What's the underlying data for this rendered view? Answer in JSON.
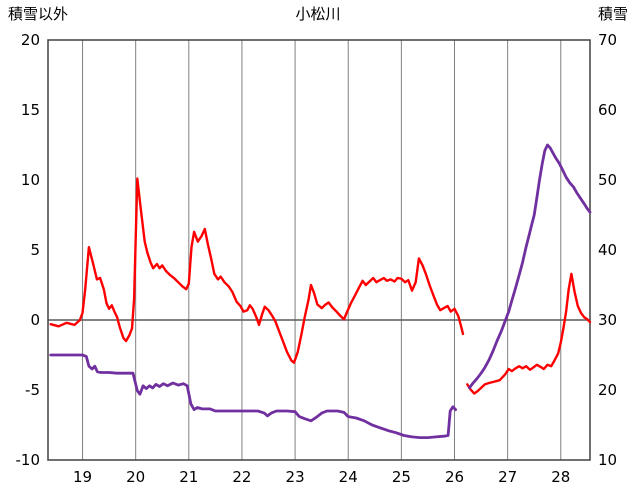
{
  "header": {
    "left_axis_title": "積雪以外",
    "chart_title": "小松川",
    "right_axis_title": "積雪"
  },
  "chart_data": {
    "type": "line",
    "title": "小松川",
    "legend": "none",
    "grid": "vertical-only",
    "x_axis": {
      "min": 18.35,
      "max": 28.55,
      "ticks": [
        19,
        20,
        21,
        22,
        23,
        24,
        25,
        26,
        27,
        28
      ]
    },
    "left_axis": {
      "label": "積雪以外",
      "min": -10,
      "max": 20,
      "ticks": [
        20,
        15,
        10,
        5,
        0,
        -5,
        -10
      ]
    },
    "right_axis": {
      "label": "積雪",
      "min": 10,
      "max": 70,
      "ticks": [
        70,
        60,
        50,
        40,
        30,
        20,
        10
      ]
    },
    "style": {
      "background": "#ffffff",
      "grid_color": "#808080",
      "zero_line_color": "#595959",
      "border_color": "#404040",
      "text_color": "#000000",
      "red_series_color": "#ff0000",
      "purple_series_color": "#7030a0"
    },
    "series": [
      {
        "id": "red-left-axis",
        "color": "#ff0000",
        "axis": "left",
        "width": 2.4,
        "segments": [
          [
            [
              18.4,
              -0.3
            ],
            [
              18.55,
              -0.45
            ],
            [
              18.7,
              -0.2
            ],
            [
              18.85,
              -0.35
            ],
            [
              18.95,
              0.0
            ],
            [
              19.0,
              0.5
            ],
            [
              19.05,
              2.2
            ],
            [
              19.12,
              5.2
            ],
            [
              19.2,
              4.0
            ],
            [
              19.27,
              2.9
            ],
            [
              19.33,
              3.0
            ],
            [
              19.4,
              2.2
            ],
            [
              19.45,
              1.2
            ],
            [
              19.5,
              0.8
            ],
            [
              19.55,
              1.05
            ],
            [
              19.6,
              0.6
            ],
            [
              19.65,
              0.2
            ],
            [
              19.7,
              -0.5
            ],
            [
              19.77,
              -1.3
            ],
            [
              19.82,
              -1.5
            ],
            [
              19.88,
              -1.1
            ],
            [
              19.93,
              -0.6
            ],
            [
              19.97,
              1.5
            ],
            [
              20.03,
              10.1
            ],
            [
              20.1,
              7.8
            ],
            [
              20.17,
              5.6
            ],
            [
              20.22,
              4.8
            ],
            [
              20.28,
              4.1
            ],
            [
              20.33,
              3.7
            ],
            [
              20.4,
              4.0
            ],
            [
              20.45,
              3.7
            ],
            [
              20.5,
              3.9
            ],
            [
              20.57,
              3.5
            ],
            [
              20.65,
              3.2
            ],
            [
              20.72,
              3.0
            ],
            [
              20.8,
              2.7
            ],
            [
              20.88,
              2.4
            ],
            [
              20.95,
              2.2
            ],
            [
              21.0,
              2.6
            ],
            [
              21.05,
              5.2
            ],
            [
              21.1,
              6.3
            ],
            [
              21.17,
              5.6
            ],
            [
              21.24,
              6.0
            ],
            [
              21.3,
              6.5
            ],
            [
              21.36,
              5.4
            ],
            [
              21.42,
              4.4
            ],
            [
              21.48,
              3.3
            ],
            [
              21.55,
              2.9
            ],
            [
              21.6,
              3.1
            ],
            [
              21.67,
              2.7
            ],
            [
              21.75,
              2.4
            ],
            [
              21.82,
              2.0
            ],
            [
              21.9,
              1.3
            ],
            [
              21.97,
              1.0
            ],
            [
              22.03,
              0.6
            ],
            [
              22.1,
              0.7
            ],
            [
              22.15,
              1.05
            ],
            [
              22.2,
              0.8
            ],
            [
              22.27,
              0.2
            ],
            [
              22.32,
              -0.35
            ],
            [
              22.38,
              0.4
            ],
            [
              22.43,
              0.95
            ],
            [
              22.5,
              0.7
            ],
            [
              22.57,
              0.3
            ],
            [
              22.63,
              -0.1
            ],
            [
              22.7,
              -0.8
            ],
            [
              22.78,
              -1.6
            ],
            [
              22.85,
              -2.3
            ],
            [
              22.93,
              -2.9
            ],
            [
              22.98,
              -3.05
            ],
            [
              23.05,
              -2.3
            ],
            [
              23.12,
              -1.0
            ],
            [
              23.18,
              0.2
            ],
            [
              23.25,
              1.4
            ],
            [
              23.3,
              2.5
            ],
            [
              23.36,
              1.9
            ],
            [
              23.42,
              1.1
            ],
            [
              23.5,
              0.85
            ],
            [
              23.57,
              1.1
            ],
            [
              23.63,
              1.25
            ],
            [
              23.7,
              0.9
            ],
            [
              23.78,
              0.6
            ],
            [
              23.85,
              0.3
            ],
            [
              23.92,
              0.05
            ],
            [
              23.97,
              0.5
            ],
            [
              24.05,
              1.2
            ],
            [
              24.12,
              1.7
            ],
            [
              24.2,
              2.3
            ],
            [
              24.27,
              2.8
            ],
            [
              24.33,
              2.5
            ],
            [
              24.4,
              2.75
            ],
            [
              24.47,
              3.0
            ],
            [
              24.53,
              2.7
            ],
            [
              24.6,
              2.85
            ],
            [
              24.67,
              3.0
            ],
            [
              24.73,
              2.8
            ],
            [
              24.8,
              2.9
            ],
            [
              24.87,
              2.75
            ],
            [
              24.93,
              3.0
            ],
            [
              25.0,
              2.95
            ],
            [
              25.07,
              2.7
            ],
            [
              25.13,
              2.85
            ],
            [
              25.2,
              2.1
            ],
            [
              25.27,
              2.7
            ],
            [
              25.33,
              4.4
            ],
            [
              25.4,
              3.9
            ],
            [
              25.47,
              3.2
            ],
            [
              25.53,
              2.5
            ],
            [
              25.6,
              1.8
            ],
            [
              25.67,
              1.1
            ],
            [
              25.73,
              0.7
            ],
            [
              25.8,
              0.85
            ],
            [
              25.87,
              1.0
            ],
            [
              25.93,
              0.6
            ],
            [
              26.0,
              0.8
            ],
            [
              26.07,
              0.3
            ],
            [
              26.12,
              -0.4
            ],
            [
              26.16,
              -1.0
            ]
          ],
          [
            [
              26.24,
              -4.6
            ],
            [
              26.3,
              -4.95
            ],
            [
              26.37,
              -5.25
            ],
            [
              26.43,
              -5.1
            ],
            [
              26.5,
              -4.85
            ],
            [
              26.57,
              -4.6
            ],
            [
              26.65,
              -4.5
            ],
            [
              26.75,
              -4.4
            ],
            [
              26.85,
              -4.3
            ],
            [
              26.95,
              -3.9
            ],
            [
              27.02,
              -3.5
            ],
            [
              27.08,
              -3.65
            ],
            [
              27.15,
              -3.45
            ],
            [
              27.22,
              -3.3
            ],
            [
              27.28,
              -3.45
            ],
            [
              27.35,
              -3.3
            ],
            [
              27.42,
              -3.55
            ],
            [
              27.48,
              -3.4
            ],
            [
              27.55,
              -3.2
            ],
            [
              27.62,
              -3.35
            ],
            [
              27.68,
              -3.5
            ],
            [
              27.75,
              -3.2
            ],
            [
              27.82,
              -3.3
            ],
            [
              27.88,
              -2.9
            ],
            [
              27.95,
              -2.4
            ],
            [
              28.0,
              -1.6
            ],
            [
              28.05,
              -0.6
            ],
            [
              28.1,
              0.6
            ],
            [
              28.15,
              2.2
            ],
            [
              28.2,
              3.3
            ],
            [
              28.26,
              2.0
            ],
            [
              28.32,
              1.0
            ],
            [
              28.38,
              0.5
            ],
            [
              28.44,
              0.2
            ],
            [
              28.5,
              0.05
            ],
            [
              28.55,
              -0.15
            ]
          ]
        ]
      },
      {
        "id": "purple-right-axis",
        "color": "#7030a0",
        "axis": "right",
        "width": 2.8,
        "segments": [
          [
            [
              18.4,
              25
            ],
            [
              18.7,
              25
            ],
            [
              19.0,
              25
            ],
            [
              19.07,
              24.8
            ],
            [
              19.12,
              23.4
            ],
            [
              19.18,
              23.0
            ],
            [
              19.23,
              23.4
            ],
            [
              19.28,
              22.6
            ],
            [
              19.35,
              22.5
            ],
            [
              19.5,
              22.5
            ],
            [
              19.65,
              22.4
            ],
            [
              19.8,
              22.4
            ],
            [
              19.95,
              22.4
            ],
            [
              20.03,
              19.9
            ],
            [
              20.08,
              19.4
            ],
            [
              20.14,
              20.6
            ],
            [
              20.2,
              20.2
            ],
            [
              20.26,
              20.6
            ],
            [
              20.32,
              20.3
            ],
            [
              20.38,
              20.8
            ],
            [
              20.45,
              20.5
            ],
            [
              20.52,
              20.9
            ],
            [
              20.6,
              20.6
            ],
            [
              20.7,
              21.0
            ],
            [
              20.8,
              20.7
            ],
            [
              20.9,
              20.9
            ],
            [
              20.97,
              20.6
            ],
            [
              21.04,
              18.0
            ],
            [
              21.1,
              17.2
            ],
            [
              21.16,
              17.5
            ],
            [
              21.25,
              17.3
            ],
            [
              21.4,
              17.3
            ],
            [
              21.5,
              17.0
            ],
            [
              21.7,
              17.0
            ],
            [
              21.9,
              17.0
            ],
            [
              22.1,
              17.0
            ],
            [
              22.3,
              17.0
            ],
            [
              22.42,
              16.7
            ],
            [
              22.48,
              16.3
            ],
            [
              22.55,
              16.7
            ],
            [
              22.65,
              17.0
            ],
            [
              22.85,
              17.0
            ],
            [
              23.0,
              16.9
            ],
            [
              23.08,
              16.2
            ],
            [
              23.18,
              15.9
            ],
            [
              23.3,
              15.6
            ],
            [
              23.4,
              16.1
            ],
            [
              23.5,
              16.7
            ],
            [
              23.6,
              17.0
            ],
            [
              23.8,
              17.0
            ],
            [
              23.92,
              16.8
            ],
            [
              24.0,
              16.2
            ],
            [
              24.15,
              16.0
            ],
            [
              24.3,
              15.6
            ],
            [
              24.45,
              15.0
            ],
            [
              24.6,
              14.6
            ],
            [
              24.75,
              14.2
            ],
            [
              24.9,
              13.9
            ],
            [
              25.05,
              13.5
            ],
            [
              25.2,
              13.3
            ],
            [
              25.35,
              13.2
            ],
            [
              25.5,
              13.2
            ],
            [
              25.65,
              13.3
            ],
            [
              25.8,
              13.4
            ],
            [
              25.88,
              13.5
            ],
            [
              25.92,
              17.0
            ],
            [
              25.97,
              17.6
            ],
            [
              26.02,
              17.2
            ]
          ],
          [
            [
              26.28,
              20.3
            ],
            [
              26.35,
              21.0
            ],
            [
              26.42,
              21.6
            ],
            [
              26.5,
              22.4
            ],
            [
              26.57,
              23.2
            ],
            [
              26.65,
              24.3
            ],
            [
              26.72,
              25.5
            ],
            [
              26.8,
              27.0
            ],
            [
              26.88,
              28.4
            ],
            [
              26.95,
              29.8
            ],
            [
              27.02,
              31.2
            ],
            [
              27.08,
              32.8
            ],
            [
              27.15,
              34.6
            ],
            [
              27.22,
              36.5
            ],
            [
              27.28,
              38.2
            ],
            [
              27.35,
              40.5
            ],
            [
              27.4,
              42.0
            ],
            [
              27.45,
              43.5
            ],
            [
              27.5,
              45.0
            ],
            [
              27.55,
              47.5
            ],
            [
              27.6,
              50.0
            ],
            [
              27.65,
              52.3
            ],
            [
              27.7,
              54.2
            ],
            [
              27.75,
              55.0
            ],
            [
              27.8,
              54.6
            ],
            [
              27.85,
              53.9
            ],
            [
              27.9,
              53.2
            ],
            [
              27.97,
              52.4
            ],
            [
              28.03,
              51.5
            ],
            [
              28.1,
              50.4
            ],
            [
              28.17,
              49.6
            ],
            [
              28.24,
              49.0
            ],
            [
              28.3,
              48.2
            ],
            [
              28.37,
              47.4
            ],
            [
              28.44,
              46.6
            ],
            [
              28.5,
              45.9
            ],
            [
              28.55,
              45.4
            ]
          ]
        ]
      }
    ]
  }
}
